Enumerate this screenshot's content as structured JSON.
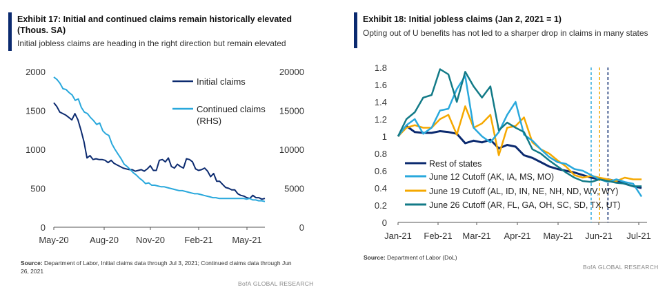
{
  "left": {
    "title": "Exhibit 17: Initial and continued claims remain historically elevated (Thous. SA)",
    "subtitle": "Initial jobless claims are heading in the right direction but remain elevated",
    "source_label": "Source:",
    "source_text": "Department of Labor, Initial claims data through Jul 3, 2021;  Continued  claims data through Jun 26, 2021",
    "brand": "BofA GLOBAL RESEARCH"
  },
  "right": {
    "title": "Exhibit 18: Initial jobless claims (Jan 2, 2021 = 1)",
    "subtitle": "Opting out of U benefits has not led to a sharper drop in claims in many states",
    "source_label": "Source:",
    "source_text": "Department of Labor (DoL)",
    "brand": "BofA GLOBAL RESEARCH"
  },
  "chart_data": [
    {
      "type": "line",
      "title": "Exhibit 17: Initial and continued claims remain historically elevated (Thous. SA)",
      "x_ticks": [
        "May-20",
        "Aug-20",
        "Nov-20",
        "Feb-21",
        "May-21"
      ],
      "ylim_left": [
        0,
        2000
      ],
      "ylim_right": [
        0,
        20000
      ],
      "y_ticks_left": [
        "0",
        "500",
        "1000",
        "1500",
        "2000"
      ],
      "y_ticks_right": [
        "0",
        "5000",
        "10000",
        "15000",
        "20000"
      ],
      "legend_position": "top-right",
      "colors": {
        "initial": "#0b2a6f",
        "continued": "#29a8dc"
      },
      "series": [
        {
          "name": "Initial claims",
          "axis": "left",
          "values": [
            1600,
            1550,
            1480,
            1460,
            1440,
            1410,
            1380,
            1460,
            1380,
            1250,
            1100,
            890,
            920,
            870,
            880,
            870,
            870,
            860,
            830,
            860,
            820,
            800,
            780,
            760,
            750,
            740,
            740,
            720,
            730,
            740,
            720,
            750,
            790,
            730,
            730,
            860,
            870,
            840,
            890,
            780,
            760,
            810,
            780,
            760,
            880,
            870,
            840,
            750,
            730,
            740,
            760,
            720,
            650,
            690,
            590,
            590,
            550,
            510,
            500,
            480,
            480,
            430,
            410,
            400,
            380,
            370,
            410,
            380,
            380,
            360,
            370
          ]
        },
        {
          "name": "Continued claims (RHS)",
          "axis": "right",
          "values": [
            19300,
            19000,
            18500,
            17800,
            17700,
            17300,
            17000,
            16300,
            16500,
            15400,
            14800,
            14600,
            14100,
            13700,
            13200,
            13400,
            12400,
            12000,
            11800,
            10700,
            10000,
            9400,
            8800,
            8100,
            7800,
            7400,
            7000,
            6700,
            6300,
            6000,
            5600,
            5700,
            5400,
            5400,
            5300,
            5200,
            5200,
            5100,
            5000,
            4900,
            4800,
            4700,
            4700,
            4600,
            4500,
            4400,
            4300,
            4300,
            4200,
            4100,
            4000,
            3900,
            3800,
            3800,
            3700,
            3700,
            3700,
            3700,
            3700,
            3700,
            3700,
            3700,
            3700,
            3600,
            3700,
            3500,
            3500,
            3400,
            3400,
            3300
          ]
        }
      ]
    },
    {
      "type": "line",
      "title": "Exhibit 18: Initial jobless claims (Jan 2, 2021 = 1)",
      "x_ticks": [
        "Jan-21",
        "Feb-21",
        "Mar-21",
        "Apr-21",
        "May-21",
        "Jun-21",
        "Jul-21"
      ],
      "ylim": [
        0,
        1.8
      ],
      "y_ticks": [
        "0",
        "0.2",
        "0.4",
        "0.6",
        "0.8",
        "1",
        "1.2",
        "1.4",
        "1.6",
        "1.8"
      ],
      "legend_position": "bottom-left",
      "x_start": "2021-01-02",
      "x_step_weeks": 1,
      "vertical_lines": [
        {
          "date": "2021-06-12",
          "color": "#29a8dc"
        },
        {
          "date": "2021-06-19",
          "color": "#f5a800"
        },
        {
          "date": "2021-06-26",
          "color": "#0b2a6f"
        }
      ],
      "series": [
        {
          "name": "Rest of states",
          "color": "#0b2a6f",
          "values": [
            1.0,
            1.12,
            1.05,
            1.04,
            1.04,
            1.06,
            1.05,
            1.03,
            0.92,
            0.95,
            0.93,
            0.96,
            0.86,
            0.9,
            0.88,
            0.78,
            0.75,
            0.7,
            0.65,
            0.62,
            0.6,
            0.58,
            0.55,
            0.52,
            0.5,
            0.5,
            0.48,
            0.45,
            0.42,
            0.4
          ]
        },
        {
          "name": "June 12 Cutoff (AK, IA, MS, MO)",
          "color": "#29a8dc",
          "values": [
            1.0,
            1.13,
            1.2,
            1.03,
            1.1,
            1.3,
            1.32,
            1.55,
            1.7,
            1.1,
            1.0,
            0.93,
            1.05,
            1.25,
            1.4,
            1.02,
            0.95,
            0.85,
            0.76,
            0.7,
            0.68,
            0.62,
            0.6,
            0.55,
            0.5,
            0.47,
            0.5,
            0.47,
            0.45,
            0.3
          ]
        },
        {
          "name": "June 19 Cutoff (AL, ID, IN, NE, NH, ND, WV, WY)",
          "color": "#f5a800",
          "values": [
            1.0,
            1.1,
            1.13,
            1.1,
            1.1,
            1.2,
            1.25,
            1.02,
            1.35,
            1.1,
            1.15,
            1.25,
            0.78,
            1.1,
            1.12,
            1.22,
            0.93,
            0.85,
            0.8,
            0.72,
            0.65,
            0.55,
            0.52,
            0.54,
            0.52,
            0.5,
            0.48,
            0.52,
            0.5,
            0.5
          ]
        },
        {
          "name": "June 26 Cutoff (AR, FL, GA, OH, SC, SD, TX, UT)",
          "color": "#127a87",
          "values": [
            1.0,
            1.2,
            1.28,
            1.45,
            1.48,
            1.78,
            1.72,
            1.4,
            1.75,
            1.58,
            1.45,
            1.58,
            1.07,
            1.16,
            1.1,
            1.05,
            0.85,
            0.8,
            0.72,
            0.65,
            0.58,
            0.52,
            0.48,
            0.47,
            0.5,
            0.48,
            0.46,
            0.45,
            0.42,
            0.42
          ]
        }
      ]
    }
  ]
}
